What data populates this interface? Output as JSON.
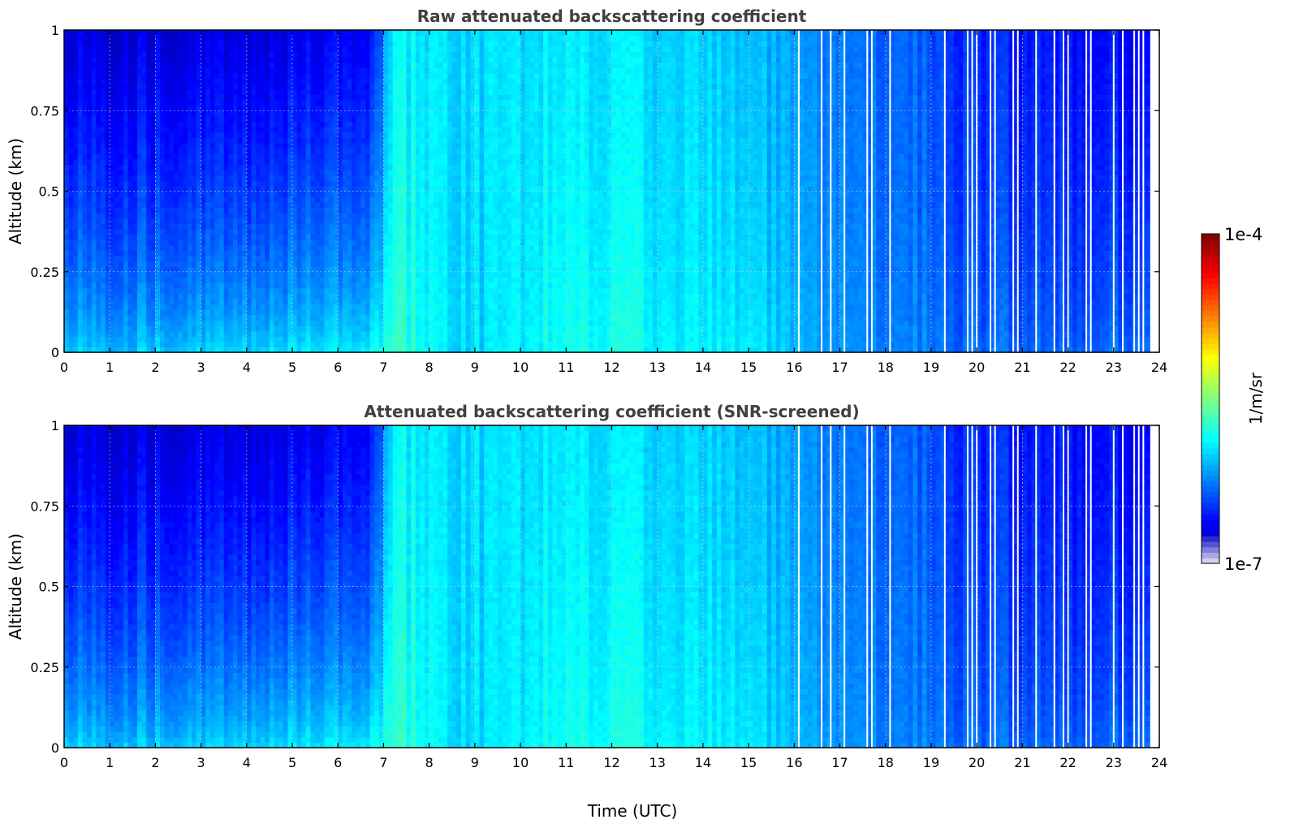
{
  "chart_data": [
    {
      "type": "heatmap",
      "title": "Raw attenuated backscattering coefficient",
      "xlabel": "",
      "ylabel": "Altitude (km)",
      "xlim": [
        0,
        24
      ],
      "ylim": [
        0,
        1
      ],
      "x_ticks": [
        "0",
        "1",
        "2",
        "3",
        "4",
        "5",
        "6",
        "7",
        "8",
        "9",
        "10",
        "11",
        "12",
        "13",
        "14",
        "15",
        "16",
        "17",
        "18",
        "19",
        "20",
        "21",
        "22",
        "23",
        "24"
      ],
      "y_ticks": [
        "0",
        "0.25",
        "0.5",
        "0.75",
        "1"
      ],
      "grid": true,
      "scale": "log",
      "data_end_hour": 23.8,
      "signal_profile_log10": {
        "hours": [
          0,
          1,
          4,
          5.5,
          6.8,
          7.2,
          8.2,
          9.0,
          10.5,
          12.0,
          13.5,
          15.0,
          16.0,
          17.0,
          18.5,
          19.5,
          21.0,
          22.0,
          23.0,
          23.8
        ],
        "surface": [
          -5.95,
          -6.0,
          -5.95,
          -5.9,
          -5.85,
          -5.7,
          -5.9,
          -6.0,
          -5.85,
          -5.8,
          -5.9,
          -5.9,
          -6.1,
          -6.2,
          -6.2,
          -6.3,
          -6.3,
          -6.35,
          -6.3,
          -6.2
        ],
        "top_1km": [
          -6.7,
          -6.72,
          -6.72,
          -6.68,
          -6.6,
          -5.9,
          -5.95,
          -6.0,
          -5.95,
          -5.95,
          -6.0,
          -6.05,
          -6.2,
          -6.3,
          -6.3,
          -6.5,
          -6.55,
          -6.6,
          -6.62,
          -6.55
        ]
      },
      "gap_hours": [
        16.1,
        16.6,
        16.8,
        17.1,
        17.6,
        17.7,
        18.1,
        19.3,
        19.8,
        19.9,
        20.0,
        20.3,
        20.4,
        20.8,
        20.9,
        21.3,
        21.7,
        21.9,
        22.0,
        22.4,
        22.5,
        23.0,
        23.2,
        23.45,
        23.55,
        23.65
      ]
    },
    {
      "type": "heatmap",
      "title": "Attenuated backscattering coefficient (SNR-screened)",
      "xlabel": "Time (UTC)",
      "ylabel": "Altitude (km)",
      "xlim": [
        0,
        24
      ],
      "ylim": [
        0,
        1
      ],
      "x_ticks": [
        "0",
        "1",
        "2",
        "3",
        "4",
        "5",
        "6",
        "7",
        "8",
        "9",
        "10",
        "11",
        "12",
        "13",
        "14",
        "15",
        "16",
        "17",
        "18",
        "19",
        "20",
        "21",
        "22",
        "23",
        "24"
      ],
      "y_ticks": [
        "0",
        "0.25",
        "0.5",
        "0.75",
        "1"
      ],
      "grid": true,
      "scale": "log",
      "data_end_hour": 23.8,
      "signal_profile_log10": {
        "hours": [
          0,
          1,
          4,
          5.5,
          6.8,
          7.2,
          8.2,
          9.0,
          10.5,
          12.0,
          13.5,
          15.0,
          16.0,
          17.0,
          18.5,
          19.5,
          21.0,
          22.0,
          23.0,
          23.8
        ],
        "surface": [
          -5.95,
          -6.0,
          -5.95,
          -5.9,
          -5.85,
          -5.7,
          -5.9,
          -6.0,
          -5.85,
          -5.8,
          -5.9,
          -5.9,
          -6.1,
          -6.2,
          -6.2,
          -6.3,
          -6.3,
          -6.35,
          -6.3,
          -6.2
        ],
        "top_1km": [
          -6.7,
          -6.72,
          -6.72,
          -6.68,
          -6.6,
          -5.9,
          -5.95,
          -6.0,
          -5.95,
          -5.95,
          -6.0,
          -6.05,
          -6.2,
          -6.3,
          -6.3,
          -6.5,
          -6.55,
          -6.6,
          -6.62,
          -6.55
        ]
      },
      "gap_hours": [
        16.1,
        16.6,
        16.8,
        17.1,
        17.6,
        17.7,
        18.1,
        19.3,
        19.8,
        19.9,
        20.0,
        20.3,
        20.4,
        20.8,
        20.9,
        21.3,
        21.7,
        21.9,
        22.0,
        22.4,
        22.5,
        23.0,
        23.2,
        23.45,
        23.55,
        23.65
      ]
    }
  ],
  "colorbar": {
    "label": "1/m/sr",
    "max_label": "1e-4",
    "min_label": "1e-7",
    "colormap": "jet",
    "range_log10": [
      -7,
      -4
    ]
  }
}
